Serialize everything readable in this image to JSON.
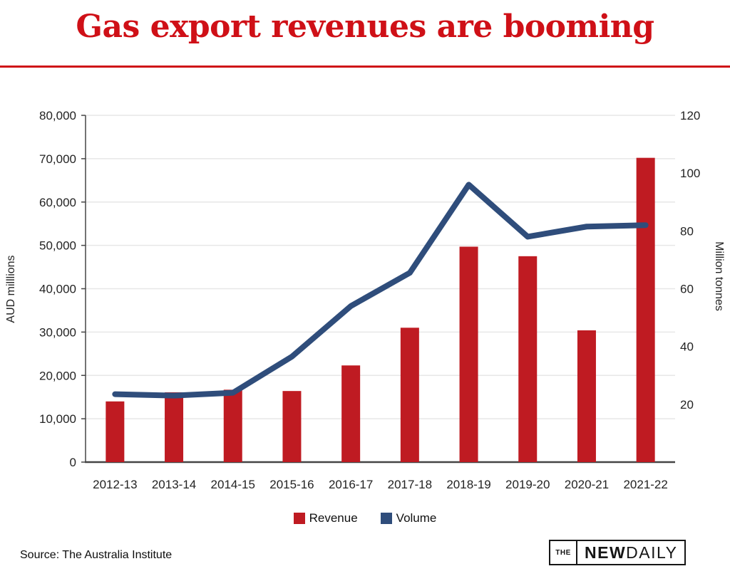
{
  "header": {
    "title": "Gas export revenues are booming",
    "title_color": "#CF1017",
    "rule_color": "#CF1017"
  },
  "legend": {
    "items": [
      {
        "label": "Revenue",
        "color": "#BF1B22"
      },
      {
        "label": "Volume",
        "color": "#2F4D7B"
      }
    ]
  },
  "footer": {
    "source": "Source: The Australia Institute",
    "logo": {
      "prefix": "THE",
      "bold": "NEW",
      "regular": "DAILY"
    }
  },
  "chart_data": {
    "type": "bar",
    "title": "Gas export revenues are booming",
    "categories": [
      "2012-13",
      "2013-14",
      "2014-15",
      "2015-16",
      "2016-17",
      "2017-18",
      "2018-19",
      "2019-20",
      "2020-21",
      "2021-22"
    ],
    "series": [
      {
        "name": "Revenue",
        "type": "bar",
        "axis": "left",
        "color": "#BF1B22",
        "values": [
          14000,
          16100,
          16700,
          16400,
          22300,
          31000,
          49700,
          47500,
          30400,
          70200
        ]
      },
      {
        "name": "Volume",
        "type": "line",
        "axis": "right",
        "color": "#2F4D7B",
        "values": [
          23.5,
          23,
          24,
          36.5,
          54,
          65.5,
          96,
          78,
          81.5,
          82
        ]
      }
    ],
    "left_axis": {
      "label": "AUD milllions",
      "min": 0,
      "max": 80000,
      "tick_values": [
        0,
        10000,
        20000,
        30000,
        40000,
        50000,
        60000,
        70000,
        80000
      ],
      "tick_labels": [
        "0",
        "10,000",
        "20,000",
        "30,000",
        "40,000",
        "50,000",
        "60,000",
        "70,000",
        "80,000"
      ]
    },
    "right_axis": {
      "label": "Million tonnes",
      "min": 0,
      "max": 120,
      "tick_values": [
        20,
        40,
        60,
        80,
        100,
        120
      ],
      "tick_labels": [
        "20",
        "40",
        "60",
        "80",
        "100",
        "120"
      ]
    },
    "grid": true,
    "legend_position": "bottom",
    "grid_color": "#E7E7E7",
    "axis_line_color": "#454545",
    "tick_text_color": "#232323"
  }
}
